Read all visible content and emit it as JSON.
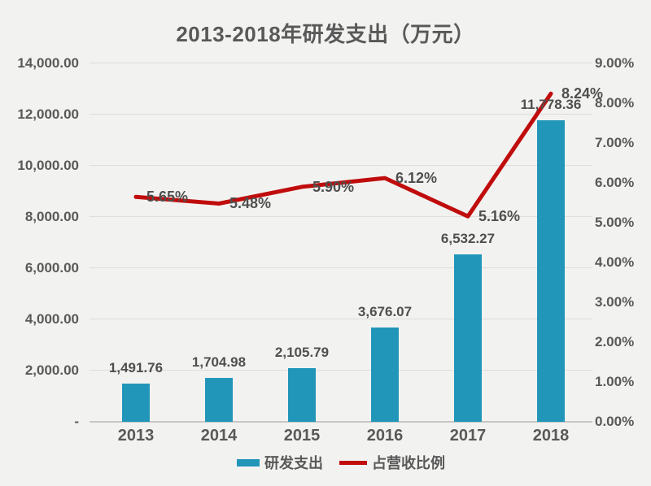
{
  "page": {
    "background": "#f2f2f0",
    "text_color": "#595959"
  },
  "chart_data": {
    "type": "combo-bar-line",
    "title": "2013-2018年研发支出（万元）",
    "categories": [
      "2013",
      "2014",
      "2015",
      "2016",
      "2017",
      "2018"
    ],
    "series": [
      {
        "name": "研发支出",
        "type": "bar",
        "axis": "left",
        "color": "#2196b9",
        "values": [
          1491.76,
          1704.98,
          2105.79,
          3676.07,
          6532.27,
          11778.36
        ],
        "value_labels": [
          "1,491.76",
          "1,704.98",
          "2,105.79",
          "3,676.07",
          "6,532.27",
          "11,778.36"
        ]
      },
      {
        "name": "占营收比例",
        "type": "line",
        "axis": "right",
        "color": "#c00c0c",
        "values": [
          5.65,
          5.48,
          5.9,
          6.12,
          5.16,
          8.24
        ],
        "value_labels": [
          "5.65%",
          "5.48%",
          "5.90%",
          "6.12%",
          "5.16%",
          "8.24%"
        ]
      }
    ],
    "left_axis": {
      "min": 0,
      "max": 14000,
      "step": 2000,
      "tick_labels": [
        "-",
        "2,000.00",
        "4,000.00",
        "6,000.00",
        "8,000.00",
        "10,000.00",
        "12,000.00",
        "14,000.00"
      ]
    },
    "right_axis": {
      "min": 0,
      "max": 9,
      "step": 1,
      "tick_labels": [
        "0.00%",
        "1.00%",
        "2.00%",
        "3.00%",
        "4.00%",
        "5.00%",
        "6.00%",
        "7.00%",
        "8.00%",
        "9.00%"
      ]
    },
    "grid": true,
    "legend_position": "bottom"
  }
}
